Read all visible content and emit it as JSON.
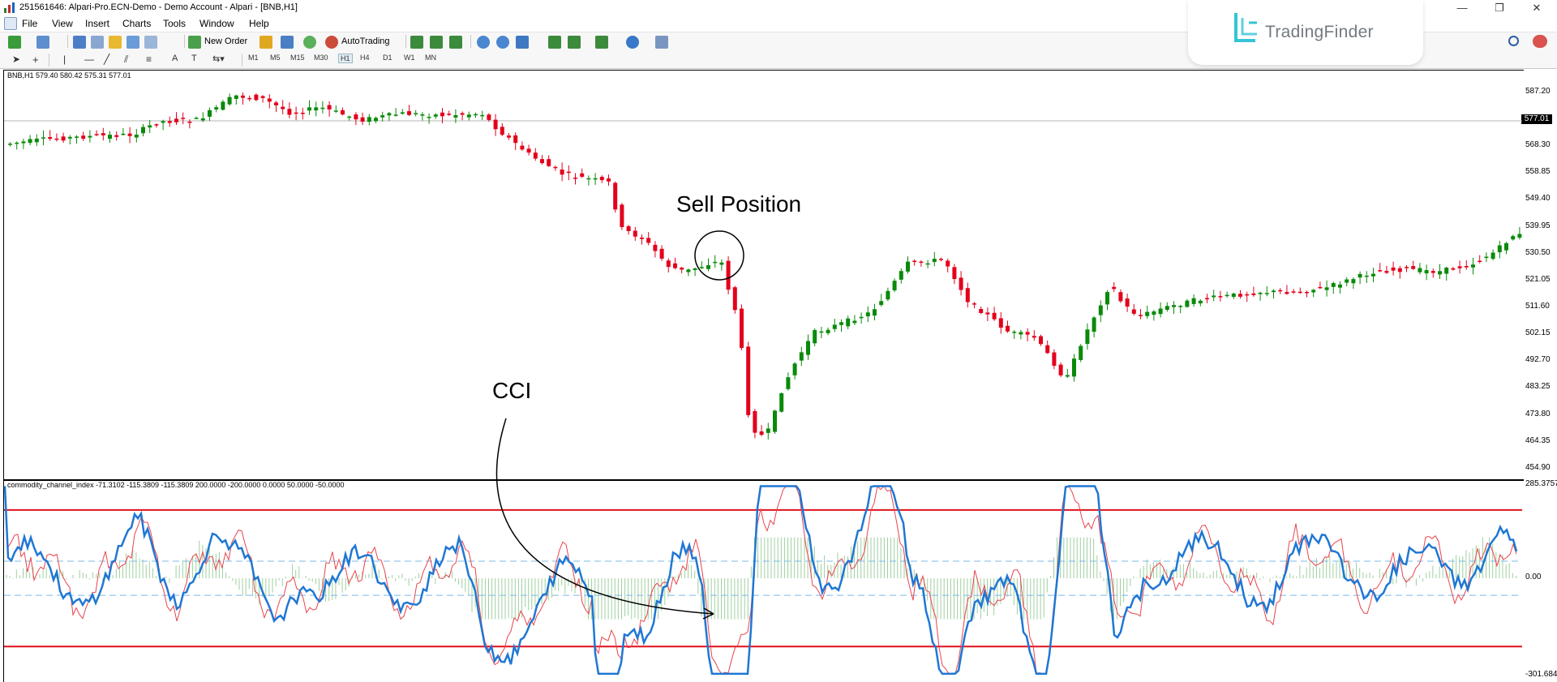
{
  "window": {
    "title": "251561646: Alpari-Pro.ECN-Demo - Demo Account - Alpari - [BNB,H1]",
    "controls": [
      "—",
      "❐",
      "✕"
    ]
  },
  "menu": [
    "File",
    "View",
    "Insert",
    "Charts",
    "Tools",
    "Window",
    "Help"
  ],
  "toolbar": {
    "new_order": "New Order",
    "autotrading": "AutoTrading",
    "timeframes": [
      "M1",
      "M5",
      "M15",
      "M30",
      "H1",
      "H4",
      "D1",
      "W1",
      "MN"
    ]
  },
  "watermark": {
    "brand": "TradingFinder"
  },
  "chart": {
    "symbol_info": "BNB,H1  579.40 580.42 575.31 577.01",
    "current_price": "577.01",
    "price_labels": [
      "587.20",
      "577.01",
      "568.30",
      "558.85",
      "549.40",
      "539.95",
      "530.50",
      "521.05",
      "511.60",
      "502.15",
      "492.70",
      "483.25",
      "473.80",
      "464.35",
      "454.90"
    ],
    "current_price_value": 577.01,
    "price_range": [
      454.9,
      587.2
    ],
    "annotation_sell": "Sell Position",
    "colors": {
      "bull": "#0a8a0a",
      "bear": "#e3001b"
    }
  },
  "indicator": {
    "info": "commodity_channel_index -71.3102 -115.3809 -115.3809 200.0000 -200.0000 0.0000 50.0000 -50.0000",
    "labels": [
      "285.3757",
      "0.00",
      "-301.6846"
    ],
    "range": [
      -301.68,
      285.38
    ],
    "levels": [
      200,
      -200,
      50,
      -50,
      0
    ],
    "annotation": "CCI",
    "colors": {
      "main": "#1f77d4",
      "signal": "#e8444c",
      "level": "#e0101b",
      "dashed": "#7ab8e8",
      "hist": "#9fcf9f"
    }
  }
}
